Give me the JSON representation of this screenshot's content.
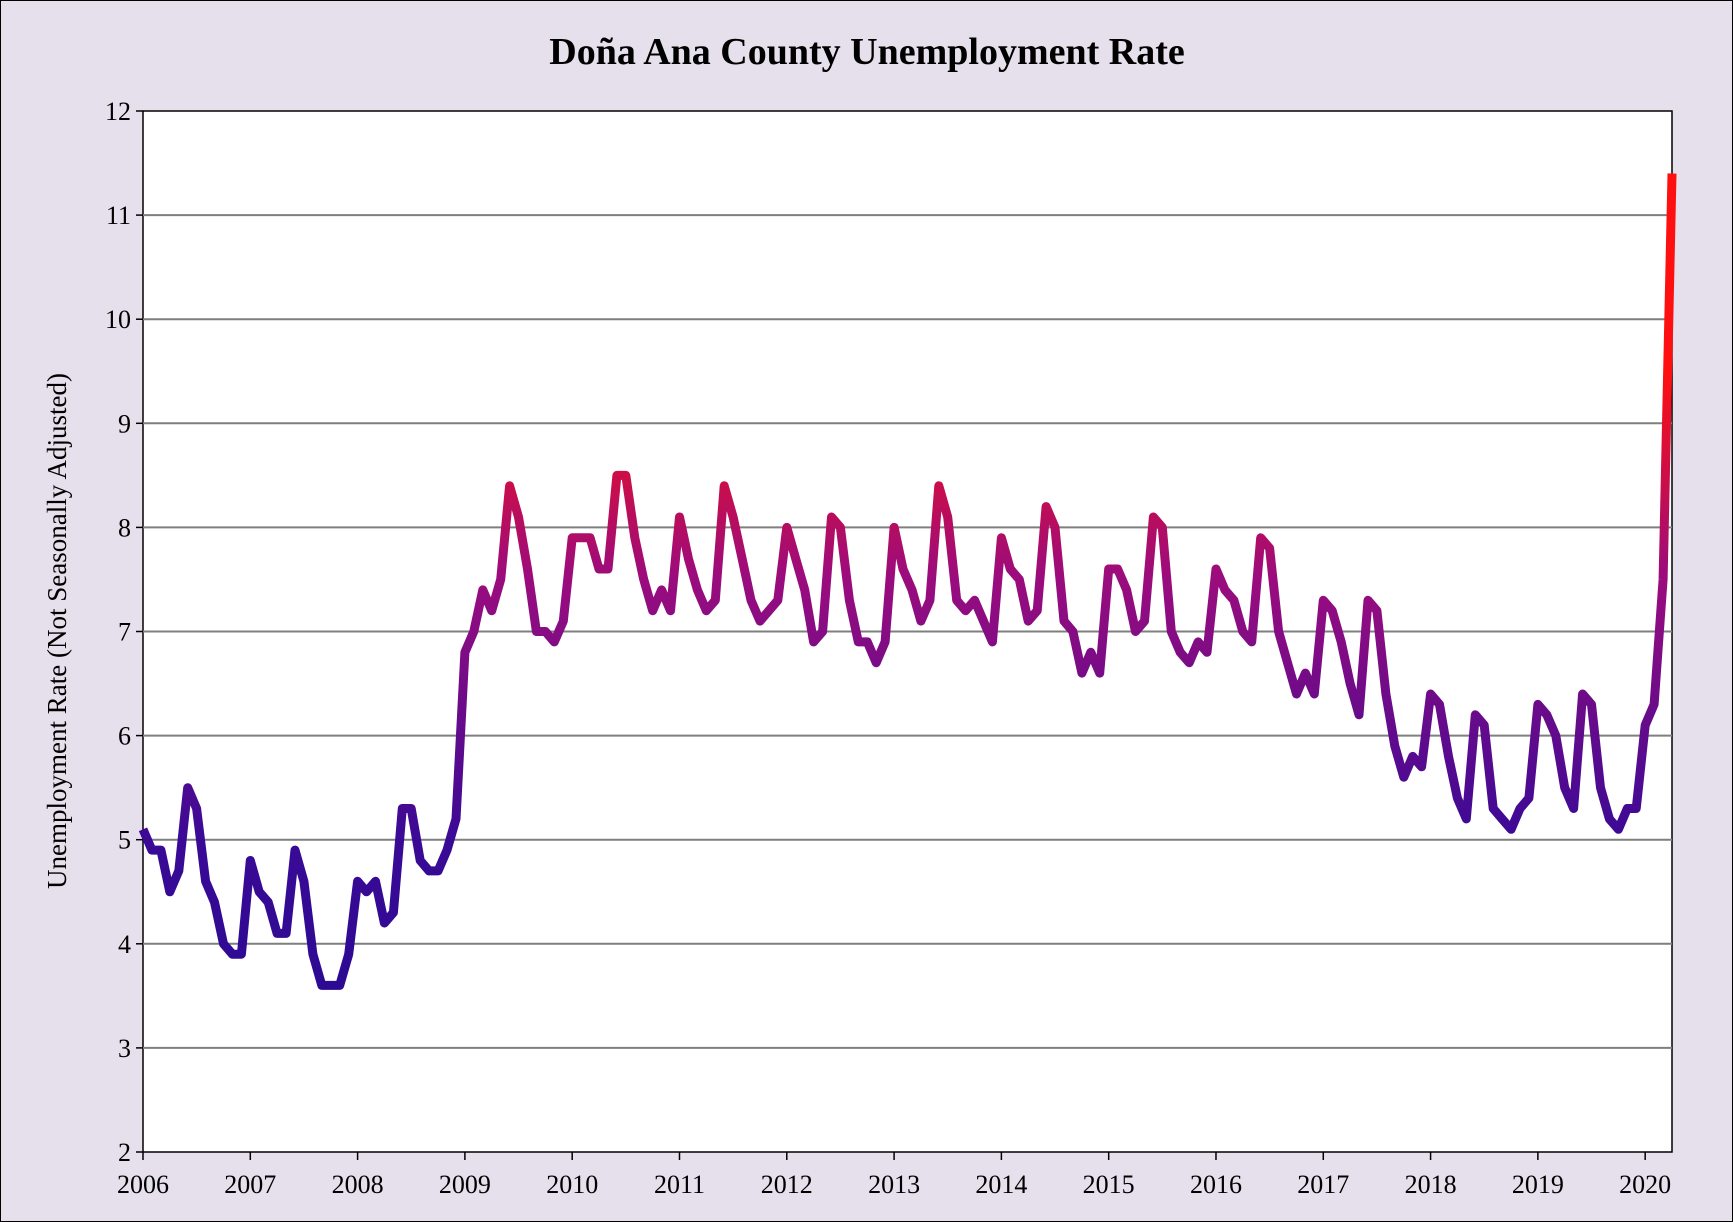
{
  "chart_data": {
    "type": "line",
    "title": "Doña Ana County Unemployment Rate",
    "xlabel": "",
    "ylabel": "Unemployment Rate (Not Seasonally Adjusted)",
    "xlim": [
      2006.0,
      2020.25
    ],
    "ylim": [
      2,
      12
    ],
    "yticks": [
      "2",
      "3",
      "4",
      "5",
      "6",
      "7",
      "8",
      "9",
      "10",
      "11",
      "12"
    ],
    "xticks": [
      "2006",
      "2007",
      "2008",
      "2009",
      "2010",
      "2011",
      "2012",
      "2013",
      "2014",
      "2015",
      "2016",
      "2017",
      "2018",
      "2019",
      "2020"
    ],
    "grid": "horizontal",
    "colors": {
      "low": "#2a0a8c",
      "mid": "#9a0c7e",
      "high": "#ff1010",
      "background": "#e6e0ec",
      "plot": "#ffffff"
    },
    "series": [
      {
        "x_start": "2006-01",
        "frequency": "monthly",
        "values": [
          5.1,
          4.9,
          4.9,
          4.5,
          4.7,
          5.5,
          5.3,
          4.6,
          4.4,
          4.0,
          3.9,
          3.9,
          4.8,
          4.5,
          4.4,
          4.1,
          4.1,
          4.9,
          4.6,
          3.9,
          3.6,
          3.6,
          3.6,
          3.9,
          4.6,
          4.5,
          4.6,
          4.2,
          4.3,
          5.3,
          5.3,
          4.8,
          4.7,
          4.7,
          4.9,
          5.2,
          6.8,
          7.0,
          7.4,
          7.2,
          7.5,
          8.4,
          8.1,
          7.6,
          7.0,
          7.0,
          6.9,
          7.1,
          7.9,
          7.9,
          7.9,
          7.6,
          7.6,
          8.5,
          8.5,
          7.9,
          7.5,
          7.2,
          7.4,
          7.2,
          8.1,
          7.7,
          7.4,
          7.2,
          7.3,
          8.4,
          8.1,
          7.7,
          7.3,
          7.1,
          7.2,
          7.3,
          8.0,
          7.7,
          7.4,
          6.9,
          7.0,
          8.1,
          8.0,
          7.3,
          6.9,
          6.9,
          6.7,
          6.9,
          8.0,
          7.6,
          7.4,
          7.1,
          7.3,
          8.4,
          8.1,
          7.3,
          7.2,
          7.3,
          7.1,
          6.9,
          7.9,
          7.6,
          7.5,
          7.1,
          7.2,
          8.2,
          8.0,
          7.1,
          7.0,
          6.6,
          6.8,
          6.6,
          7.6,
          7.6,
          7.4,
          7.0,
          7.1,
          8.1,
          8.0,
          7.0,
          6.8,
          6.7,
          6.9,
          6.8,
          7.6,
          7.4,
          7.3,
          7.0,
          6.9,
          7.9,
          7.8,
          7.0,
          6.7,
          6.4,
          6.6,
          6.4,
          7.3,
          7.2,
          6.9,
          6.5,
          6.2,
          7.3,
          7.2,
          6.4,
          5.9,
          5.6,
          5.8,
          5.7,
          6.4,
          6.3,
          5.8,
          5.4,
          5.2,
          6.2,
          6.1,
          5.3,
          5.2,
          5.1,
          5.3,
          5.4,
          6.3,
          6.2,
          6.0,
          5.5,
          5.3,
          6.4,
          6.3,
          5.5,
          5.2,
          5.1,
          5.3,
          5.3,
          6.1,
          6.3,
          7.5,
          11.4
        ]
      }
    ]
  }
}
